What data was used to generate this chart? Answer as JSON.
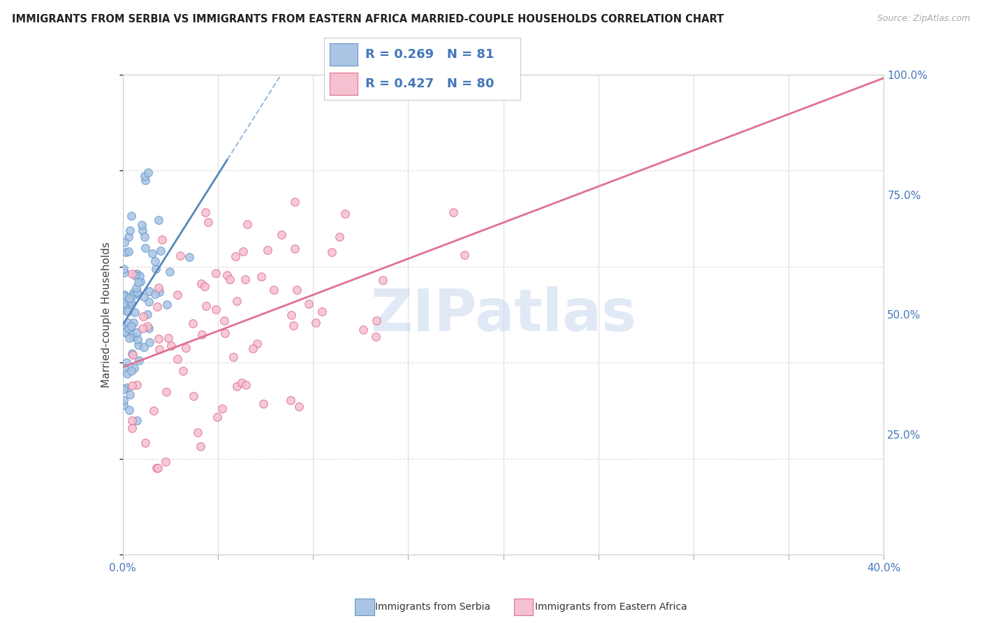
{
  "title": "IMMIGRANTS FROM SERBIA VS IMMIGRANTS FROM EASTERN AFRICA MARRIED-COUPLE HOUSEHOLDS CORRELATION CHART",
  "source": "Source: ZipAtlas.com",
  "ylabel": "Married-couple Households",
  "xlim": [
    0.0,
    40.0
  ],
  "ylim": [
    0.0,
    100.0
  ],
  "yticks": [
    25.0,
    50.0,
    75.0,
    100.0
  ],
  "ytick_labels": [
    "25.0%",
    "50.0%",
    "75.0%",
    "100.0%"
  ],
  "serbia_color": "#aac4e4",
  "serbia_edge": "#6699cc",
  "eastern_africa_color": "#f5c0d0",
  "eastern_africa_edge": "#e07090",
  "serbia_R": 0.269,
  "serbia_N": 81,
  "eastern_africa_R": 0.427,
  "eastern_africa_N": 80,
  "trendline_serbia_solid_color": "#5588bb",
  "trendline_serbia_dashed_color": "#99bbdd",
  "trendline_eastern_africa_color": "#e07090",
  "watermark": "ZIPatlas",
  "watermark_color": "#c8d8ee",
  "background_color": "#ffffff",
  "grid_color": "#dddddd",
  "legend_label_serbia": "Immigrants from Serbia",
  "legend_label_ea": "Immigrants from Eastern Africa",
  "serbia_seed": 10,
  "ea_seed": 20,
  "serbia_x_max": 5.5,
  "ea_x_max": 36.0
}
